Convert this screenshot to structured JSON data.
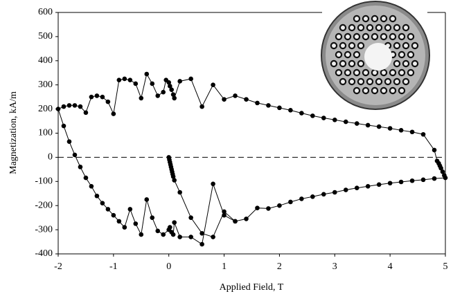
{
  "chart_data": {
    "type": "line",
    "xlabel": "Applied Field, T",
    "ylabel": "Magnetization, kA/m",
    "x": [
      0,
      0.01,
      0.02,
      0.03,
      0.04,
      0.05,
      0.06,
      0.07,
      0.08,
      0.1,
      0.2,
      0.4,
      0.6,
      0.8,
      1.0,
      1.2,
      1.4,
      1.6,
      1.8,
      2.0,
      2.2,
      2.4,
      2.6,
      2.8,
      3.0,
      3.2,
      3.4,
      3.6,
      3.8,
      4.0,
      4.2,
      4.4,
      4.6,
      4.8,
      5.0,
      4.98,
      4.95,
      4.92,
      4.9,
      4.88,
      4.85,
      4.8,
      4.6,
      4.4,
      4.2,
      4.0,
      3.8,
      3.6,
      3.4,
      3.2,
      3.0,
      2.8,
      2.6,
      2.4,
      2.2,
      2.0,
      1.8,
      1.6,
      1.4,
      1.2,
      1.0,
      0.8,
      0.6,
      0.4,
      0.2,
      0.1,
      0.08,
      0.05,
      0.02,
      0,
      -0.05,
      -0.1,
      -0.2,
      -0.3,
      -0.4,
      -0.5,
      -0.6,
      -0.7,
      -0.8,
      -0.9,
      -1.0,
      -1.1,
      -1.2,
      -1.3,
      -1.4,
      -1.5,
      -1.6,
      -1.7,
      -1.8,
      -1.9,
      -2.0,
      -1.9,
      -1.8,
      -1.7,
      -1.6,
      -1.5,
      -1.4,
      -1.3,
      -1.2,
      -1.1,
      -1.0,
      -0.9,
      -0.8,
      -0.7,
      -0.6,
      -0.5,
      -0.4,
      -0.3,
      -0.2,
      -0.1,
      0,
      0.02,
      0.05,
      0.08,
      0.1,
      0.2,
      0.4,
      0.6,
      0.8,
      1.0,
      1.2
    ],
    "series": [
      {
        "color": "#000000",
        "values": [
          0,
          -10,
          -20,
          -30,
          -40,
          -50,
          -60,
          -70,
          -80,
          -95,
          -145,
          -250,
          -315,
          -330,
          -225,
          -265,
          -255,
          -210,
          -212,
          -200,
          -185,
          -172,
          -163,
          -153,
          -145,
          -135,
          -127,
          -120,
          -113,
          -107,
          -102,
          -97,
          -93,
          -88,
          -85,
          -75,
          -60,
          -45,
          -35,
          -25,
          -15,
          30,
          95,
          105,
          112,
          120,
          127,
          133,
          140,
          147,
          155,
          163,
          172,
          183,
          195,
          205,
          215,
          225,
          240,
          255,
          240,
          300,
          210,
          325,
          315,
          245,
          260,
          280,
          295,
          310,
          320,
          270,
          255,
          305,
          345,
          245,
          305,
          320,
          325,
          320,
          180,
          230,
          250,
          255,
          250,
          185,
          210,
          215,
          215,
          210,
          200,
          130,
          65,
          10,
          -40,
          -85,
          -120,
          -160,
          -190,
          -215,
          -240,
          -265,
          -290,
          -215,
          -275,
          -320,
          -175,
          -250,
          -305,
          -320,
          -300,
          -290,
          -310,
          -320,
          -270,
          -330,
          -330,
          -360,
          -110,
          -240,
          -265
        ]
      }
    ],
    "xlim": [
      -2,
      5
    ],
    "xticks": [
      -2,
      -1,
      0,
      1,
      2,
      3,
      4,
      5
    ],
    "ylim": [
      -400,
      600
    ],
    "yticks": [
      -400,
      -300,
      -200,
      -100,
      0,
      100,
      200,
      300,
      400,
      500,
      600
    ],
    "zero_line": true
  }
}
